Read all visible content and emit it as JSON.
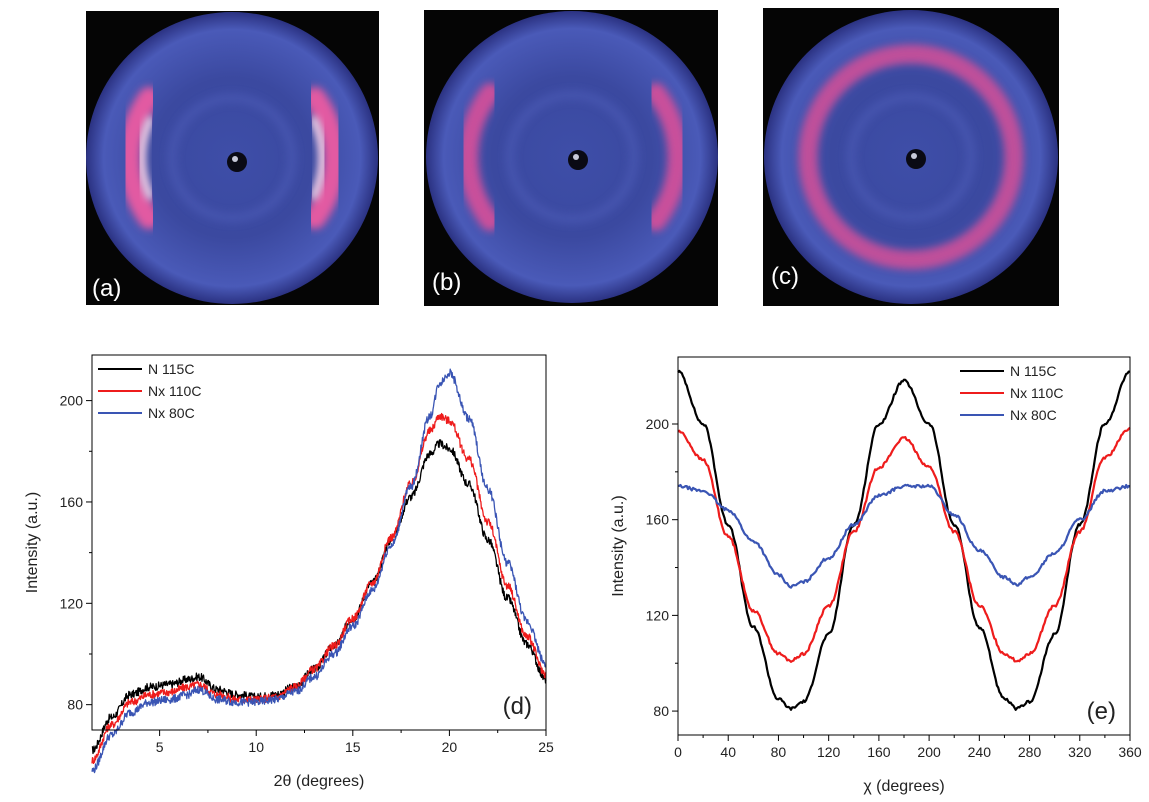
{
  "patterns": [
    {
      "label": "(a)",
      "arc_style": "two strong equatorial arcs"
    },
    {
      "label": "(b)",
      "arc_style": "two weaker equatorial arcs"
    },
    {
      "label": "(c)",
      "arc_style": "nearly uniform ring"
    }
  ],
  "colors": {
    "N 115C": "#000000",
    "Nx 110C": "#ee1c1c",
    "Nx 80C": "#3a55b4",
    "pattern_bg": "#1a1f4a",
    "pattern_highlight": "#e0509a"
  },
  "chart_data": [
    {
      "type": "line",
      "panel_label": "(d)",
      "xlabel": "2θ (degrees)",
      "ylabel": "Intensity (a.u.)",
      "xlim": [
        1.5,
        25
      ],
      "ylim": [
        70,
        218
      ],
      "xticks": [
        5,
        10,
        15,
        20,
        25
      ],
      "yticks": [
        80,
        120,
        160,
        200
      ],
      "grid": false,
      "legend_position": "top-left",
      "series": [
        {
          "name": "N 115C",
          "color": "#000000",
          "x": [
            1.5,
            2.5,
            3.5,
            4.5,
            5.5,
            6.5,
            7.0,
            8.0,
            9.0,
            10.0,
            11.0,
            12.0,
            13.0,
            14.0,
            15.0,
            16.0,
            17.0,
            18.0,
            19.0,
            19.5,
            20.0,
            21.0,
            22.0,
            23.0,
            24.0,
            25.0
          ],
          "y": [
            62,
            75,
            84,
            87,
            88,
            90,
            91,
            86,
            84,
            83,
            84,
            87,
            94,
            103,
            114,
            128,
            145,
            162,
            179,
            183,
            181,
            167,
            145,
            122,
            104,
            90
          ]
        },
        {
          "name": "Nx 110C",
          "color": "#ee1c1c",
          "x": [
            1.5,
            2.5,
            3.5,
            4.5,
            5.5,
            6.5,
            7.0,
            8.0,
            9.0,
            10.0,
            11.0,
            12.0,
            13.0,
            14.0,
            15.0,
            16.0,
            17.0,
            18.0,
            19.0,
            19.5,
            20.0,
            21.0,
            22.0,
            23.0,
            24.0,
            25.0
          ],
          "y": [
            58,
            72,
            81,
            84,
            85,
            87,
            88,
            84,
            82,
            82,
            83,
            87,
            94,
            103,
            114,
            128,
            146,
            167,
            188,
            194,
            192,
            177,
            152,
            127,
            107,
            92
          ]
        },
        {
          "name": "Nx 80C",
          "color": "#3a55b4",
          "x": [
            1.5,
            2.5,
            3.5,
            4.5,
            5.5,
            6.5,
            7.0,
            8.0,
            9.0,
            10.0,
            11.0,
            12.0,
            13.0,
            14.0,
            15.0,
            16.0,
            17.0,
            18.0,
            19.0,
            19.5,
            20.0,
            21.0,
            22.0,
            23.0,
            24.0,
            25.0
          ],
          "y": [
            54,
            68,
            77,
            81,
            82,
            84,
            86,
            82,
            81,
            81,
            82,
            85,
            91,
            100,
            111,
            125,
            143,
            166,
            194,
            207,
            211,
            193,
            165,
            136,
            113,
            96
          ]
        }
      ]
    },
    {
      "type": "line",
      "panel_label": "(e)",
      "xlabel": "χ (degrees)",
      "ylabel": "Intensity (a.u.)",
      "xlim": [
        0,
        360
      ],
      "ylim": [
        70,
        228
      ],
      "xticks": [
        0,
        40,
        80,
        120,
        160,
        200,
        240,
        280,
        320,
        360
      ],
      "yticks": [
        80,
        120,
        160,
        200
      ],
      "grid": false,
      "legend_position": "top-right",
      "series": [
        {
          "name": "N 115C",
          "color": "#000000",
          "x": [
            0,
            20,
            40,
            60,
            80,
            90,
            100,
            120,
            140,
            160,
            180,
            200,
            220,
            240,
            260,
            270,
            280,
            300,
            320,
            340,
            360
          ],
          "y": [
            222,
            200,
            158,
            115,
            85,
            81,
            84,
            112,
            158,
            200,
            218,
            200,
            158,
            115,
            85,
            81,
            84,
            112,
            158,
            200,
            222
          ]
        },
        {
          "name": "Nx 110C",
          "color": "#ee1c1c",
          "x": [
            0,
            20,
            40,
            60,
            80,
            90,
            100,
            120,
            140,
            160,
            180,
            200,
            220,
            240,
            260,
            270,
            280,
            300,
            320,
            340,
            360
          ],
          "y": [
            197,
            185,
            153,
            122,
            104,
            101,
            104,
            124,
            155,
            182,
            194,
            182,
            155,
            124,
            104,
            101,
            104,
            124,
            155,
            186,
            198
          ]
        },
        {
          "name": "Nx 80C",
          "color": "#3a55b4",
          "x": [
            0,
            20,
            40,
            60,
            80,
            90,
            100,
            120,
            140,
            160,
            180,
            200,
            220,
            240,
            260,
            270,
            280,
            300,
            320,
            340,
            360
          ],
          "y": [
            174,
            172,
            164,
            151,
            137,
            132,
            134,
            144,
            158,
            170,
            174,
            174,
            162,
            147,
            136,
            133,
            136,
            146,
            160,
            172,
            174
          ]
        }
      ]
    }
  ]
}
